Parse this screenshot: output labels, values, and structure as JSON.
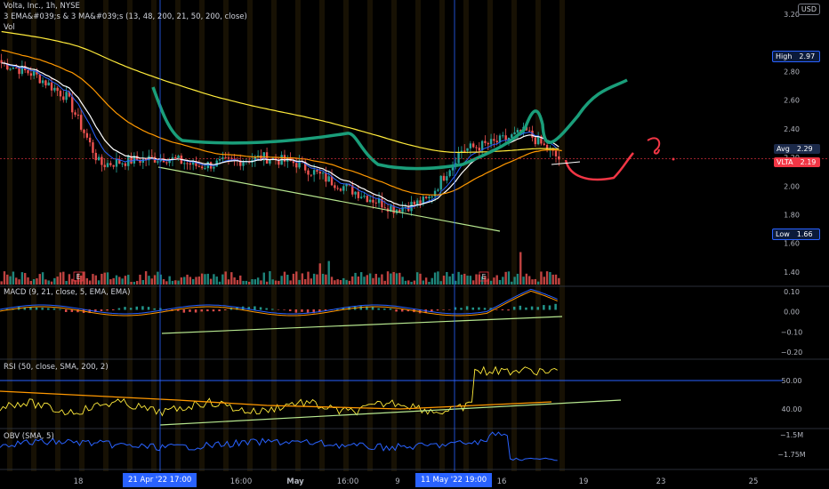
{
  "header": {
    "title": "Volta, Inc., 1h, NYSE",
    "indicators": "3 EMA&#039;s & 3 MA&#039;s (13, 48, 200, 21, 50, 200, close)",
    "vol": "Vol"
  },
  "currency": "USD",
  "tags": {
    "high": {
      "label": "High",
      "value": "2.97"
    },
    "avg": {
      "label": "Avg",
      "value": "2.29"
    },
    "last": {
      "label": "VLTA",
      "value": "2.19"
    },
    "low": {
      "label": "Low",
      "value": "1.66"
    }
  },
  "price_axis": [
    "3.20",
    "2.80",
    "2.60",
    "2.40",
    "2.20",
    "2.00",
    "1.80",
    "1.60",
    "1.40"
  ],
  "macd": {
    "title": "MACD (9, 21, close, 5, EMA, EMA)",
    "ticks": [
      "0.10",
      "0.00",
      "−0.10",
      "−0.20"
    ]
  },
  "rsi": {
    "title": "RSI (50, close, SMA, 200, 2)",
    "ticks": [
      "50.00",
      "40.00"
    ]
  },
  "obv": {
    "title": "OBV (SMA, 5)",
    "ticks": [
      "−1.5M",
      "−1.75M"
    ]
  },
  "time_axis": [
    "18",
    "16:00",
    "May",
    "16:00",
    "9",
    "16",
    "19",
    "23",
    "25"
  ],
  "time_highlights": [
    "21 Apr '22   17:00",
    "11 May '22   19:00"
  ],
  "earnings_marker": "E",
  "colors": {
    "background": "#000000",
    "up": "#26a69a",
    "down": "#ef5350",
    "ema_fast": "#2962ff",
    "ema_white": "#ffffff",
    "ma_orange": "#ff9800",
    "ma_yellow": "#ffeb3b",
    "drawing_teal": "#1a9e7a",
    "drawing_red": "#f23645",
    "trend_green": "#b7e78f"
  },
  "chart_data": {
    "type": "candlestick",
    "symbol": "VLTA",
    "exchange": "NYSE",
    "interval": "1h",
    "y_range": [
      1.3,
      3.25
    ],
    "price_markers": {
      "high": 2.97,
      "avg": 2.29,
      "last": 2.19,
      "low": 1.66
    },
    "close_path": [
      {
        "t": "18",
        "price": 2.86
      },
      {
        "t": "19",
        "price": 2.78
      },
      {
        "t": "20",
        "price": 2.62
      },
      {
        "t": "21 Apr '22",
        "price": 2.15
      },
      {
        "t": "22",
        "price": 2.18
      },
      {
        "t": "25",
        "price": 2.2
      },
      {
        "t": "27",
        "price": 2.14
      },
      {
        "t": "May",
        "price": 2.17
      },
      {
        "t": "3",
        "price": 2.2
      },
      {
        "t": "5",
        "price": 2.16
      },
      {
        "t": "9",
        "price": 2.04
      },
      {
        "t": "10",
        "price": 1.94
      },
      {
        "t": "11 May '22",
        "price": 1.84
      },
      {
        "t": "12",
        "price": 1.9
      },
      {
        "t": "13",
        "price": 2.25
      },
      {
        "t": "16",
        "price": 2.3
      },
      {
        "t": "17",
        "price": 2.38
      },
      {
        "t": "18",
        "price": 2.19
      }
    ],
    "macd_range": [
      -0.22,
      0.12
    ],
    "rsi_range": [
      36,
      58
    ],
    "obv_range": [
      -1.85,
      -1.38
    ]
  }
}
